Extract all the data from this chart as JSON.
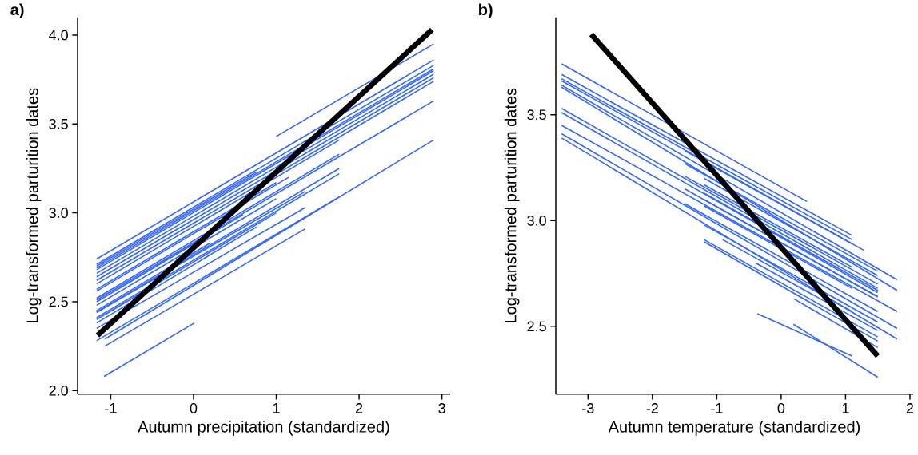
{
  "chart_data": [
    {
      "type": "line",
      "title": "a)",
      "xlabel": "Autumn precipitation (standardized)",
      "ylabel": "Log-transformed parturition dates",
      "xlim": [
        -1.4,
        3.1
      ],
      "ylim": [
        1.98,
        4.1
      ],
      "xticks": [
        -1,
        0,
        1,
        2,
        3
      ],
      "yticks": [
        {
          "value": 2,
          "label": "2.0"
        },
        {
          "value": 2.5,
          "label": "2.5"
        },
        {
          "value": 3,
          "label": "3.0"
        },
        {
          "value": 3.5,
          "label": "3.5"
        },
        {
          "value": 4,
          "label": "4.0"
        }
      ],
      "series": [
        {
          "color": "#3366ff",
          "x": [
            1.0,
            2.9
          ],
          "values": [
            3.43,
            3.95
          ]
        },
        {
          "color": "#3366ff",
          "x": [
            -1.17,
            2.9
          ],
          "values": [
            2.74,
            3.86
          ]
        },
        {
          "color": "#3366ff",
          "x": [
            -1.17,
            2.9
          ],
          "values": [
            2.71,
            3.83
          ]
        },
        {
          "color": "#3366ff",
          "x": [
            -1.17,
            2.9
          ],
          "values": [
            2.69,
            3.81
          ]
        },
        {
          "color": "#3366ff",
          "x": [
            -1.17,
            2.9
          ],
          "values": [
            2.68,
            3.8
          ]
        },
        {
          "color": "#3366ff",
          "x": [
            -1.17,
            2.9
          ],
          "values": [
            2.66,
            3.78
          ]
        },
        {
          "color": "#3366ff",
          "x": [
            -1.17,
            2.9
          ],
          "values": [
            2.64,
            3.76
          ]
        },
        {
          "color": "#3366ff",
          "x": [
            -1.17,
            2.9
          ],
          "values": [
            2.62,
            3.74
          ]
        },
        {
          "color": "#3366ff",
          "x": [
            -1.17,
            2.9
          ],
          "values": [
            2.51,
            3.63
          ]
        },
        {
          "color": "#3366ff",
          "x": [
            -1.07,
            2.9
          ],
          "values": [
            2.29,
            3.41
          ]
        },
        {
          "color": "#3366ff",
          "x": [
            -1.17,
            1.76
          ],
          "values": [
            2.6,
            3.41
          ]
        },
        {
          "color": "#3366ff",
          "x": [
            -1.17,
            1.76
          ],
          "values": [
            2.52,
            3.33
          ]
        },
        {
          "color": "#3366ff",
          "x": [
            -1.17,
            1.76
          ],
          "values": [
            2.44,
            3.25
          ]
        },
        {
          "color": "#3366ff",
          "x": [
            -1.17,
            1.76
          ],
          "values": [
            2.41,
            3.22
          ]
        },
        {
          "color": "#3366ff",
          "x": [
            -1.17,
            1.76
          ],
          "values": [
            2.28,
            3.09
          ]
        },
        {
          "color": "#3366ff",
          "x": [
            -1.17,
            1.35
          ],
          "values": [
            2.44,
            3.12
          ]
        },
        {
          "color": "#3366ff",
          "x": [
            -1.17,
            1.35
          ],
          "values": [
            2.35,
            3.03
          ]
        },
        {
          "color": "#3366ff",
          "x": [
            -1.07,
            1.35
          ],
          "values": [
            2.25,
            2.91
          ]
        },
        {
          "color": "#3366ff",
          "x": [
            -1.17,
            1.0
          ],
          "values": [
            2.57,
            3.17
          ]
        },
        {
          "color": "#3366ff",
          "x": [
            -1.17,
            1.0
          ],
          "values": [
            2.48,
            3.08
          ]
        },
        {
          "color": "#3366ff",
          "x": [
            -1.17,
            1.0
          ],
          "values": [
            2.4,
            3.0
          ]
        },
        {
          "color": "#3366ff",
          "x": [
            -1.17,
            1.15
          ],
          "values": [
            2.56,
            3.2
          ]
        },
        {
          "color": "#3366ff",
          "x": [
            -1.17,
            0.76
          ],
          "values": [
            2.7,
            3.23
          ]
        },
        {
          "color": "#3366ff",
          "x": [
            -1.17,
            0.76
          ],
          "values": [
            2.38,
            2.92
          ]
        },
        {
          "color": "#3366ff",
          "x": [
            -1.17,
            0.6
          ],
          "values": [
            2.5,
            2.99
          ]
        },
        {
          "color": "#3366ff",
          "x": [
            -1.17,
            0.2
          ],
          "values": [
            2.45,
            2.83
          ]
        },
        {
          "color": "#3366ff",
          "x": [
            -1.08,
            0.01
          ],
          "values": [
            2.08,
            2.38
          ]
        },
        {
          "color": "#000000",
          "x": [
            -1.16,
            2.88
          ],
          "values": [
            2.31,
            4.03
          ]
        }
      ]
    },
    {
      "type": "line",
      "title": "b)",
      "xlabel": "Autumn temperature (standardized)",
      "ylabel": "Log-transformed parturition dates",
      "xlim": [
        -3.5,
        2.05
      ],
      "ylim": [
        2.18,
        3.96
      ],
      "xticks": [
        -3,
        -2,
        -1,
        0,
        1,
        2
      ],
      "yticks": [
        {
          "value": 2.5,
          "label": "2.5"
        },
        {
          "value": 3,
          "label": "3.0"
        },
        {
          "value": 3.5,
          "label": "3.5"
        }
      ],
      "series": [
        {
          "color": "#3366ff",
          "x": [
            -3.41,
            0.4
          ],
          "values": [
            3.74,
            3.09
          ]
        },
        {
          "color": "#3366ff",
          "x": [
            -3.41,
            1.1
          ],
          "values": [
            3.69,
            2.93
          ]
        },
        {
          "color": "#3366ff",
          "x": [
            -3.41,
            1.1
          ],
          "values": [
            3.67,
            2.91
          ]
        },
        {
          "color": "#3366ff",
          "x": [
            -3.41,
            1.28
          ],
          "values": [
            3.66,
            2.86
          ]
        },
        {
          "color": "#3366ff",
          "x": [
            -3.41,
            1.8
          ],
          "values": [
            3.64,
            2.72
          ]
        },
        {
          "color": "#3366ff",
          "x": [
            -3.41,
            1.8
          ],
          "values": [
            3.63,
            2.67
          ]
        },
        {
          "color": "#3366ff",
          "x": [
            -3.41,
            1.5
          ],
          "values": [
            3.53,
            2.68
          ]
        },
        {
          "color": "#3366ff",
          "x": [
            -3.41,
            1.5
          ],
          "values": [
            3.51,
            2.66
          ]
        },
        {
          "color": "#3366ff",
          "x": [
            -3.41,
            1.8
          ],
          "values": [
            3.45,
            2.57
          ]
        },
        {
          "color": "#3366ff",
          "x": [
            -3.41,
            1.8
          ],
          "values": [
            3.41,
            2.49
          ]
        },
        {
          "color": "#3366ff",
          "x": [
            -3.41,
            1.8
          ],
          "values": [
            3.39,
            2.44
          ]
        },
        {
          "color": "#3366ff",
          "x": [
            -1.5,
            1.1
          ],
          "values": [
            3.33,
            2.89
          ]
        },
        {
          "color": "#3366ff",
          "x": [
            -1.5,
            1.5
          ],
          "values": [
            3.27,
            2.76
          ]
        },
        {
          "color": "#3366ff",
          "x": [
            -1.5,
            1.5
          ],
          "values": [
            3.21,
            2.7
          ]
        },
        {
          "color": "#3366ff",
          "x": [
            -1.5,
            1.5
          ],
          "values": [
            3.15,
            2.64
          ]
        },
        {
          "color": "#3366ff",
          "x": [
            -1.5,
            1.5
          ],
          "values": [
            3.08,
            2.57
          ]
        },
        {
          "color": "#3366ff",
          "x": [
            -1.2,
            1.5
          ],
          "values": [
            3.2,
            2.74
          ]
        },
        {
          "color": "#3366ff",
          "x": [
            -1.2,
            1.1
          ],
          "values": [
            3.17,
            2.78
          ]
        },
        {
          "color": "#3366ff",
          "x": [
            -1.2,
            1.5
          ],
          "values": [
            3.13,
            2.67
          ]
        },
        {
          "color": "#3366ff",
          "x": [
            -1.2,
            1.5
          ],
          "values": [
            3.1,
            2.64
          ]
        },
        {
          "color": "#3366ff",
          "x": [
            -1.2,
            1.1
          ],
          "values": [
            3.07,
            2.68
          ]
        },
        {
          "color": "#3366ff",
          "x": [
            -1.2,
            1.5
          ],
          "values": [
            2.98,
            2.52
          ]
        },
        {
          "color": "#3366ff",
          "x": [
            -1.2,
            1.5
          ],
          "values": [
            2.91,
            2.45
          ]
        },
        {
          "color": "#3366ff",
          "x": [
            -1.2,
            1.5
          ],
          "values": [
            2.9,
            2.43
          ]
        },
        {
          "color": "#3366ff",
          "x": [
            -0.91,
            1.1
          ],
          "values": [
            2.91,
            2.57
          ]
        },
        {
          "color": "#3366ff",
          "x": [
            -0.4,
            1.5
          ],
          "values": [
            2.8,
            2.48
          ]
        },
        {
          "color": "#3366ff",
          "x": [
            0.2,
            1.5
          ],
          "values": [
            2.63,
            2.4
          ]
        },
        {
          "color": "#3366ff",
          "x": [
            -0.37,
            1.1
          ],
          "values": [
            2.56,
            2.36
          ]
        },
        {
          "color": "#3366ff",
          "x": [
            0.19,
            1.5
          ],
          "values": [
            2.51,
            2.26
          ]
        },
        {
          "color": "#000000",
          "x": [
            -2.95,
            1.5
          ],
          "values": [
            3.88,
            2.36
          ]
        }
      ]
    }
  ]
}
